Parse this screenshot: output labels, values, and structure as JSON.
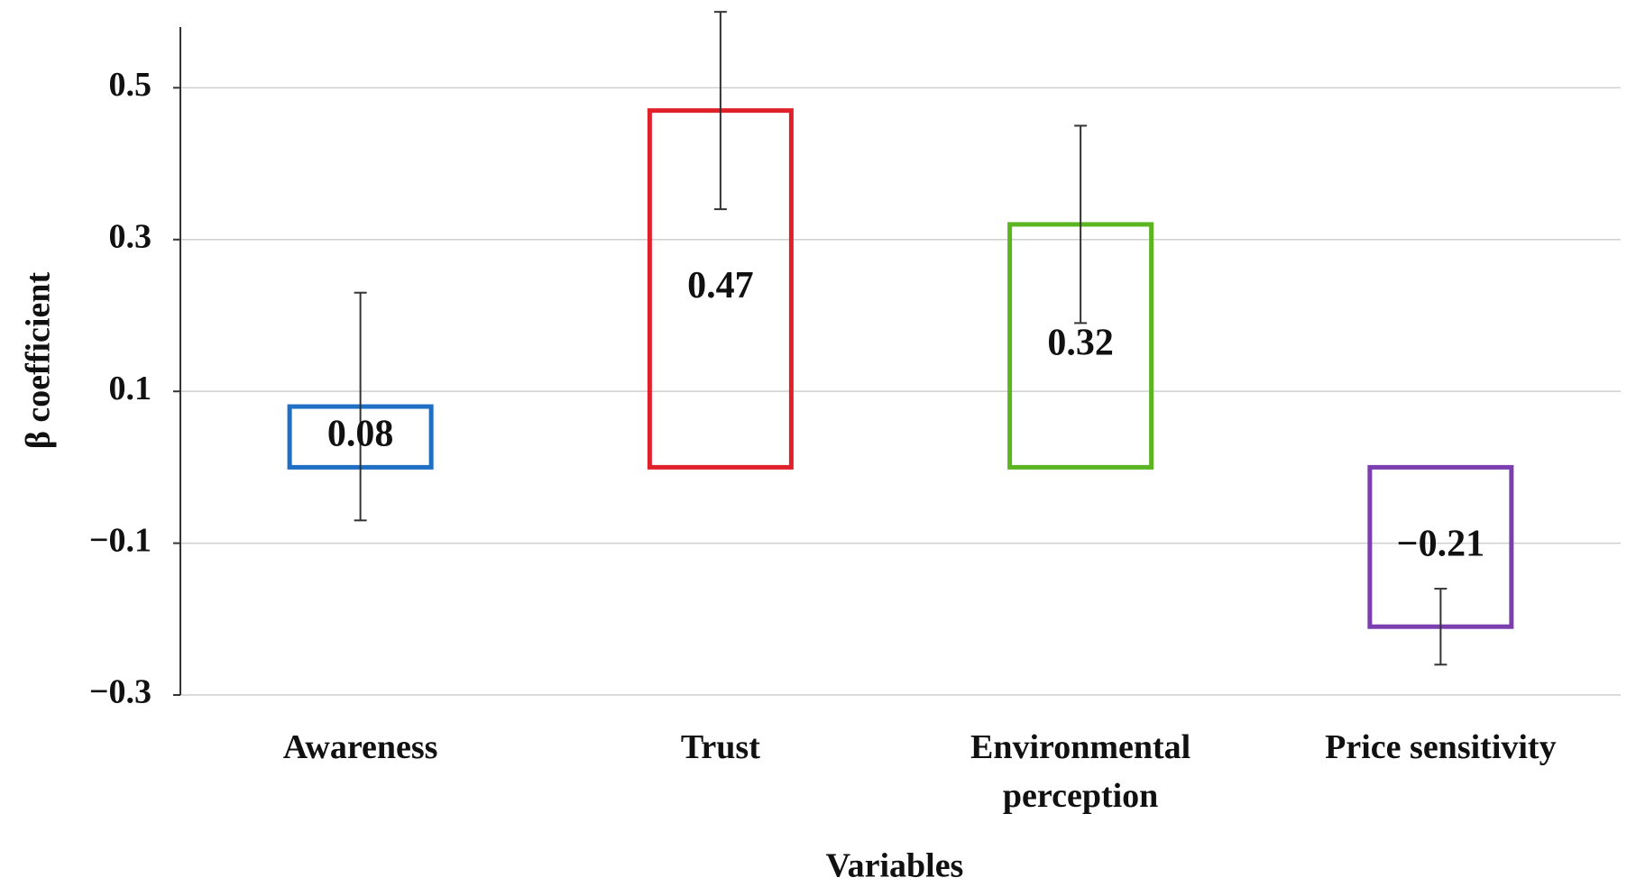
{
  "chart_data": {
    "type": "bar",
    "y_label": "β coefficient",
    "x_label": "Variables",
    "categories": [
      "Awareness",
      "Trust",
      "Environmental perception",
      "Price sensitivity"
    ],
    "values": [
      0.08,
      0.47,
      0.32,
      -0.21
    ],
    "value_labels": [
      "0.08",
      "0.47",
      "0.32",
      "−0.21"
    ],
    "errors": [
      0.15,
      0.13,
      0.13,
      0.05
    ],
    "colors": [
      "#1f6fc5",
      "#e0202a",
      "#5ab520",
      "#7b3fb0"
    ],
    "ylim": [
      -0.3,
      0.58
    ],
    "yticks": [
      {
        "value": -0.3,
        "label": "−0.3"
      },
      {
        "value": -0.1,
        "label": "−0.1"
      },
      0.1,
      0.3,
      0.5
    ],
    "grid": true
  }
}
